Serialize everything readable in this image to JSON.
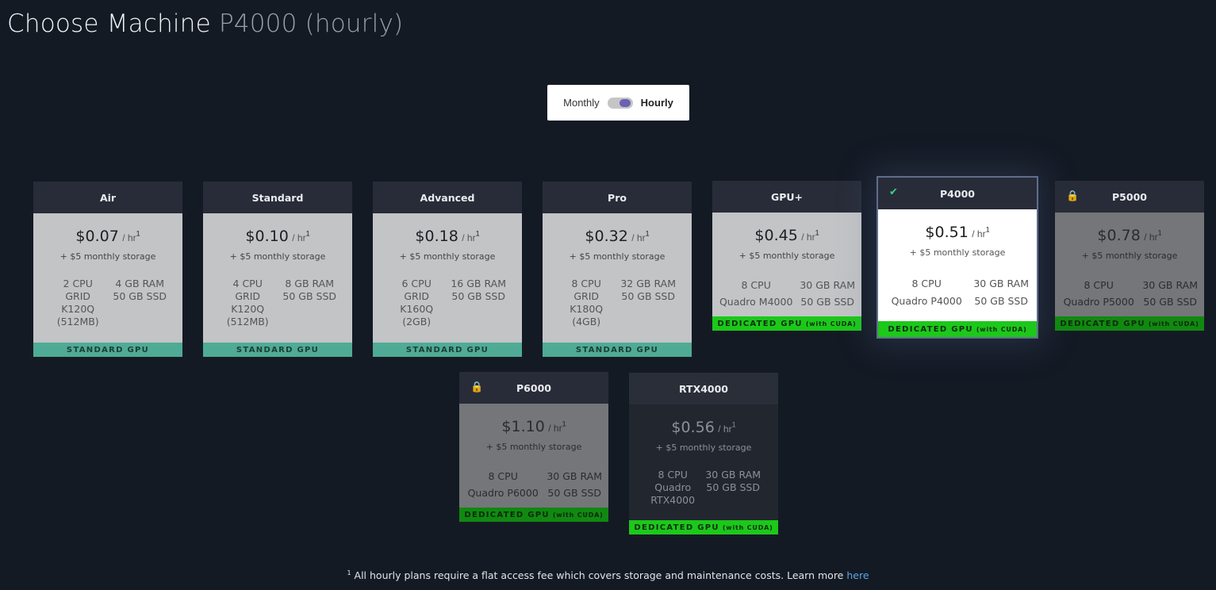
{
  "header": {
    "title": "Choose Machine",
    "subtitle": "P4000 (hourly)"
  },
  "billing_toggle": {
    "left_label": "Monthly",
    "right_label": "Hourly",
    "selected": "Hourly"
  },
  "machines": [
    {
      "name": "Air",
      "price": "$0.07",
      "per": "/ hr",
      "sup": "1",
      "storage": "+ $5 monthly storage",
      "cpu": "2 CPU",
      "gpu": "GRID K120Q (512MB)",
      "ram": "4 GB RAM",
      "ssd": "50 GB SSD",
      "badge": "STANDARD GPU",
      "badge_suffix": ""
    },
    {
      "name": "Standard",
      "price": "$0.10",
      "per": "/ hr",
      "sup": "1",
      "storage": "+ $5 monthly storage",
      "cpu": "4 CPU",
      "gpu": "GRID K120Q (512MB)",
      "ram": "8 GB RAM",
      "ssd": "50 GB SSD",
      "badge": "STANDARD GPU",
      "badge_suffix": ""
    },
    {
      "name": "Advanced",
      "price": "$0.18",
      "per": "/ hr",
      "sup": "1",
      "storage": "+ $5 monthly storage",
      "cpu": "6 CPU",
      "gpu": "GRID K160Q (2GB)",
      "ram": "16 GB RAM",
      "ssd": "50 GB SSD",
      "badge": "STANDARD GPU",
      "badge_suffix": ""
    },
    {
      "name": "Pro",
      "price": "$0.32",
      "per": "/ hr",
      "sup": "1",
      "storage": "+ $5 monthly storage",
      "cpu": "8 CPU",
      "gpu": "GRID K180Q (4GB)",
      "ram": "32 GB RAM",
      "ssd": "50 GB SSD",
      "badge": "STANDARD GPU",
      "badge_suffix": ""
    },
    {
      "name": "GPU+",
      "price": "$0.45",
      "per": "/ hr",
      "sup": "1",
      "storage": "+ $5 monthly storage",
      "cpu": "8 CPU",
      "gpu": "Quadro M4000",
      "ram": "30 GB RAM",
      "ssd": "50 GB SSD",
      "badge": "DEDICATED GPU",
      "badge_suffix": "(with CUDA)"
    },
    {
      "name": "P4000",
      "price": "$0.51",
      "per": "/ hr",
      "sup": "1",
      "storage": "+ $5 monthly storage",
      "cpu": "8 CPU",
      "gpu": "Quadro P4000",
      "ram": "30 GB RAM",
      "ssd": "50 GB SSD",
      "badge": "DEDICATED GPU",
      "badge_suffix": "(with CUDA)",
      "selected": true
    },
    {
      "name": "P5000",
      "price": "$0.78",
      "per": "/ hr",
      "sup": "1",
      "storage": "+ $5 monthly storage",
      "cpu": "8 CPU",
      "gpu": "Quadro P5000",
      "ram": "30 GB RAM",
      "ssd": "50 GB SSD",
      "badge": "DEDICATED GPU",
      "badge_suffix": "(with CUDA)",
      "locked": true
    },
    {
      "name": "P6000",
      "price": "$1.10",
      "per": "/ hr",
      "sup": "1",
      "storage": "+ $5 monthly storage",
      "cpu": "8 CPU",
      "gpu": "Quadro P6000",
      "ram": "30 GB RAM",
      "ssd": "50 GB SSD",
      "badge": "DEDICATED GPU",
      "badge_suffix": "(with CUDA)",
      "locked": true
    },
    {
      "name": "RTX4000",
      "price": "$0.56",
      "per": "/ hr",
      "sup": "1",
      "storage": "+ $5 monthly storage",
      "cpu": "8 CPU",
      "gpu": "Quadro RTX4000",
      "ram": "30 GB RAM",
      "ssd": "50 GB SSD",
      "badge": "DEDICATED GPU",
      "badge_suffix": "(with CUDA)"
    }
  ],
  "footnote": {
    "marker": "1",
    "text": "All hourly plans require a flat access fee which covers storage and maintenance costs. Learn more",
    "link": "here"
  },
  "icons": {
    "selected": "check-icon",
    "locked": "lock-icon"
  },
  "colors": {
    "background": "#141a24",
    "standard_badge": "#4fab95",
    "dedicated_badge": "#1cc81a",
    "link": "#5aa6e2"
  }
}
